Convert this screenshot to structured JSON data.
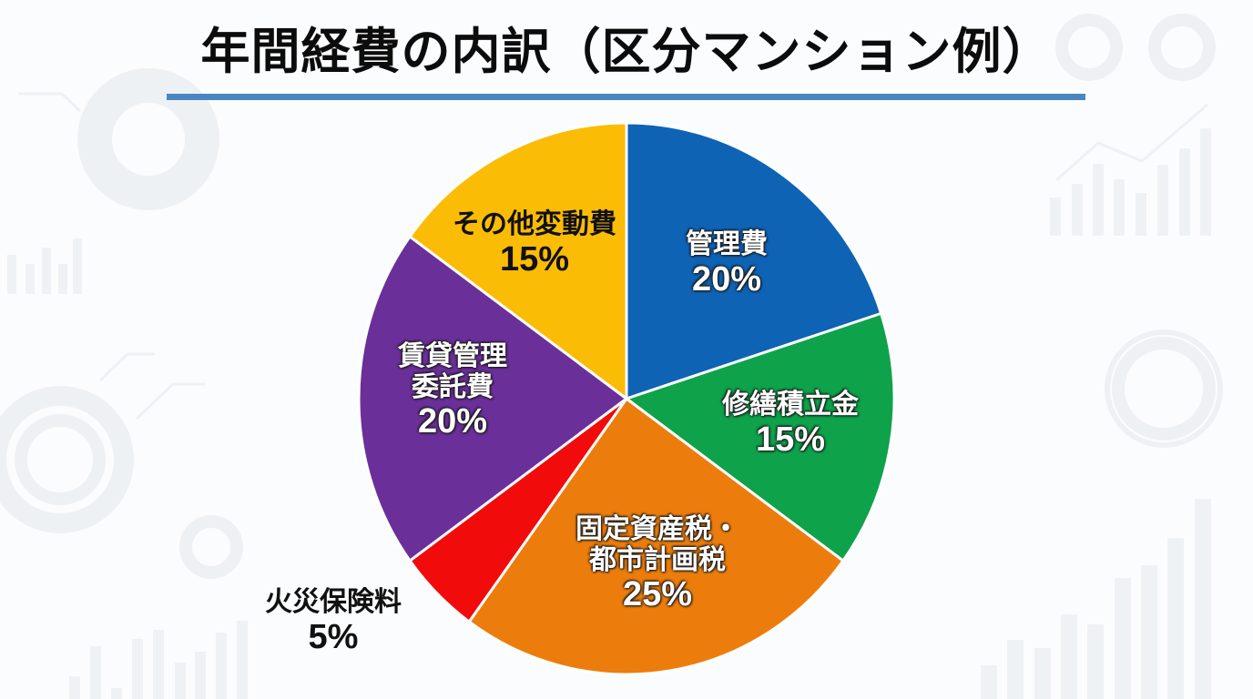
{
  "title": "年間経費の内訳（区分マンション例）",
  "colors": {
    "title_underline": "#4a86c0",
    "background": "#fbfcfd"
  },
  "chart_data": {
    "type": "pie",
    "title": "年間経費の内訳（区分マンション例）",
    "categories": [
      "管理費",
      "修繕積立金",
      "固定資産税・都市計画税",
      "火災保険料",
      "賃貸管理委託費",
      "その他変動費"
    ],
    "values": [
      20,
      15,
      25,
      5,
      20,
      15
    ],
    "unit": "%",
    "colors": [
      "#0e63b5",
      "#0ea24b",
      "#ec7d0d",
      "#f20b0b",
      "#6b2f9a",
      "#fbbc06"
    ],
    "start_angle": "12 o'clock",
    "direction": "clockwise",
    "legend": "none (inline labels)"
  },
  "labels": [
    {
      "name": "管理費",
      "pct": "20%"
    },
    {
      "name": "修繕積立金",
      "pct": "15%"
    },
    {
      "name": "固定資産税・",
      "name2": "都市計画税",
      "pct": "25%"
    },
    {
      "name": "火災保険料",
      "pct": "5%"
    },
    {
      "name": "賃貸管理",
      "name2": "委託費",
      "pct": "20%"
    },
    {
      "name": "その他変動費",
      "pct": "15%"
    }
  ]
}
